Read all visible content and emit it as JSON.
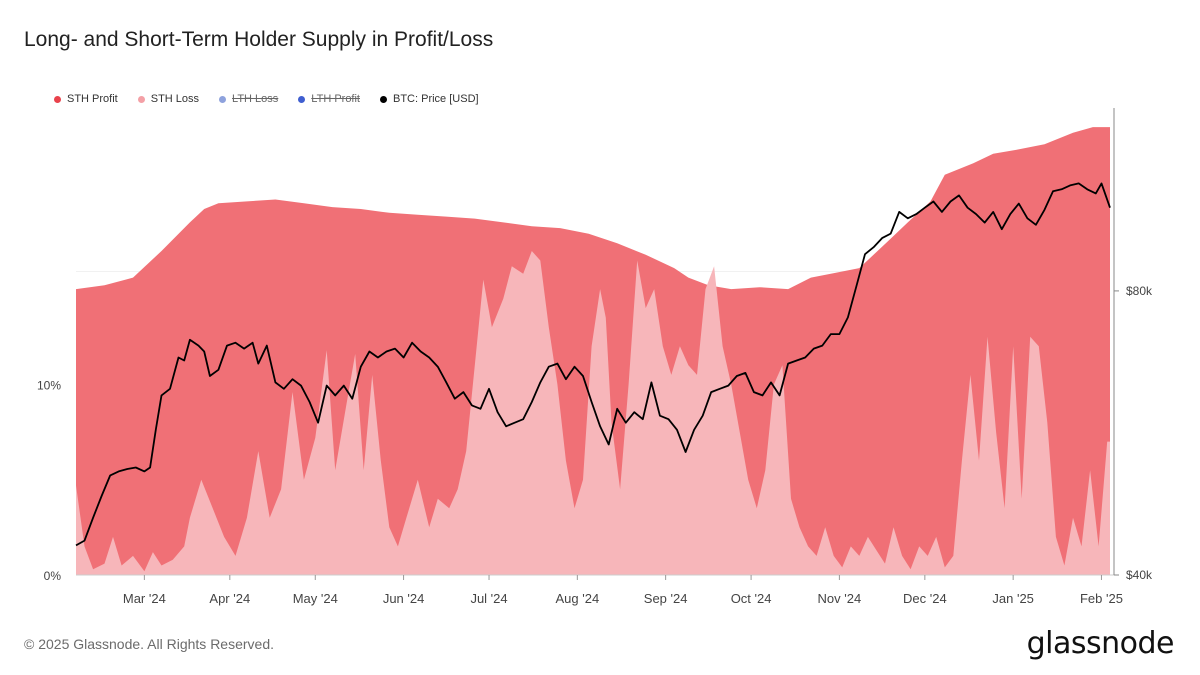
{
  "title": "Long- and Short-Term Holder Supply in Profit/Loss",
  "footer": "© 2025 Glassnode. All Rights Reserved.",
  "logo": "glassnode",
  "colors": {
    "sth_profit": "#f07076",
    "sth_loss": "#f7b6ba",
    "lth_loss": "#8ea2dd",
    "lth_profit": "#3f5ed0",
    "price": "#000000",
    "axis": "#444444"
  },
  "legend": [
    {
      "label": "STH Profit",
      "color": "#e9424c",
      "enabled": true
    },
    {
      "label": "STH Loss",
      "color": "#f4a0a6",
      "enabled": true
    },
    {
      "label": "LTH Loss",
      "color": "#8ea2dd",
      "enabled": false
    },
    {
      "label": "LTH Profit",
      "color": "#3f5ed0",
      "enabled": false
    },
    {
      "label": "BTC: Price [USD]",
      "color": "#000000",
      "enabled": true
    }
  ],
  "chart_data": {
    "type": "area",
    "title": "Long- and Short-Term Holder Supply in Profit/Loss",
    "x_range": [
      "2024-02-06",
      "2025-02-06"
    ],
    "x_ticks": [
      {
        "label": "Mar '24",
        "day": 24
      },
      {
        "label": "Apr '24",
        "day": 54
      },
      {
        "label": "May '24",
        "day": 84
      },
      {
        "label": "Jun '24",
        "day": 115
      },
      {
        "label": "Jul '24",
        "day": 145
      },
      {
        "label": "Aug '24",
        "day": 176
      },
      {
        "label": "Sep '24",
        "day": 207
      },
      {
        "label": "Oct '24",
        "day": 237
      },
      {
        "label": "Nov '24",
        "day": 268
      },
      {
        "label": "Dec '24",
        "day": 298
      },
      {
        "label": "Jan '25",
        "day": 329
      },
      {
        "label": "Feb '25",
        "day": 360
      }
    ],
    "y_left": {
      "range": [
        0,
        24.5
      ],
      "ticks": [
        {
          "label": "0%",
          "value": 0
        },
        {
          "label": "10%",
          "value": 10
        }
      ],
      "unit": "% of supply"
    },
    "y_right": {
      "scale": "log",
      "range_usd": [
        40000,
        125000
      ],
      "ticks": [
        {
          "label": "$40k",
          "value": 40000
        },
        {
          "label": "$80k",
          "value": 80000
        }
      ]
    },
    "series": [
      {
        "name": "STH Profit (top of stacked STH supply)",
        "unit": "% of supply",
        "points": [
          [
            0,
            15.0
          ],
          [
            10,
            15.2
          ],
          [
            20,
            15.6
          ],
          [
            30,
            17.0
          ],
          [
            40,
            18.5
          ],
          [
            45,
            19.2
          ],
          [
            50,
            19.5
          ],
          [
            60,
            19.6
          ],
          [
            70,
            19.7
          ],
          [
            80,
            19.5
          ],
          [
            90,
            19.3
          ],
          [
            100,
            19.2
          ],
          [
            110,
            19.0
          ],
          [
            120,
            18.9
          ],
          [
            130,
            18.8
          ],
          [
            140,
            18.7
          ],
          [
            150,
            18.5
          ],
          [
            160,
            18.3
          ],
          [
            170,
            18.2
          ],
          [
            180,
            17.9
          ],
          [
            190,
            17.4
          ],
          [
            200,
            16.8
          ],
          [
            210,
            16.1
          ],
          [
            215,
            15.6
          ],
          [
            222,
            15.2
          ],
          [
            230,
            15.0
          ],
          [
            240,
            15.1
          ],
          [
            250,
            15.0
          ],
          [
            258,
            15.6
          ],
          [
            265,
            15.8
          ],
          [
            275,
            16.1
          ],
          [
            285,
            17.5
          ],
          [
            292,
            18.5
          ],
          [
            300,
            19.6
          ],
          [
            305,
            21.0
          ],
          [
            315,
            21.6
          ],
          [
            322,
            22.1
          ],
          [
            330,
            22.3
          ],
          [
            340,
            22.6
          ],
          [
            350,
            23.2
          ],
          [
            357,
            23.5
          ],
          [
            363,
            23.5
          ]
        ]
      },
      {
        "name": "STH Loss",
        "unit": "% of supply",
        "points": [
          [
            0,
            4.7
          ],
          [
            3,
            1.5
          ],
          [
            6,
            0.3
          ],
          [
            10,
            0.6
          ],
          [
            13,
            2.0
          ],
          [
            16,
            0.5
          ],
          [
            20,
            1.0
          ],
          [
            24,
            0.2
          ],
          [
            27,
            1.2
          ],
          [
            30,
            0.5
          ],
          [
            34,
            0.8
          ],
          [
            38,
            1.5
          ],
          [
            40,
            3.0
          ],
          [
            44,
            5.0
          ],
          [
            48,
            3.5
          ],
          [
            52,
            2.0
          ],
          [
            56,
            1.0
          ],
          [
            60,
            3.0
          ],
          [
            64,
            6.5
          ],
          [
            68,
            3.0
          ],
          [
            72,
            4.5
          ],
          [
            76,
            9.6
          ],
          [
            80,
            5.0
          ],
          [
            84,
            7.2
          ],
          [
            88,
            11.8
          ],
          [
            91,
            5.5
          ],
          [
            95,
            9.0
          ],
          [
            98,
            11.6
          ],
          [
            101,
            5.5
          ],
          [
            104,
            10.5
          ],
          [
            107,
            6.0
          ],
          [
            110,
            2.5
          ],
          [
            113,
            1.5
          ],
          [
            116,
            3.0
          ],
          [
            120,
            5.0
          ],
          [
            124,
            2.5
          ],
          [
            127,
            4.0
          ],
          [
            131,
            3.5
          ],
          [
            134,
            4.5
          ],
          [
            137,
            6.5
          ],
          [
            140,
            11.0
          ],
          [
            143,
            15.5
          ],
          [
            146,
            13.0
          ],
          [
            150,
            14.5
          ],
          [
            153,
            16.2
          ],
          [
            157,
            15.8
          ],
          [
            160,
            17.0
          ],
          [
            163,
            16.5
          ],
          [
            166,
            13.0
          ],
          [
            169,
            10.0
          ],
          [
            172,
            6.0
          ],
          [
            175,
            3.5
          ],
          [
            178,
            5.0
          ],
          [
            181,
            12.0
          ],
          [
            184,
            15.0
          ],
          [
            186,
            13.5
          ],
          [
            188,
            8.0
          ],
          [
            191,
            4.5
          ],
          [
            194,
            10.0
          ],
          [
            197,
            16.5
          ],
          [
            200,
            14.0
          ],
          [
            203,
            15.0
          ],
          [
            206,
            12.0
          ],
          [
            209,
            10.5
          ],
          [
            212,
            12.0
          ],
          [
            215,
            11.0
          ],
          [
            218,
            10.5
          ],
          [
            221,
            15.0
          ],
          [
            224,
            16.2
          ],
          [
            227,
            12.0
          ],
          [
            230,
            10.0
          ],
          [
            233,
            7.5
          ],
          [
            236,
            5.0
          ],
          [
            239,
            3.5
          ],
          [
            242,
            5.5
          ],
          [
            245,
            10.0
          ],
          [
            248,
            11.0
          ],
          [
            251,
            4.0
          ],
          [
            254,
            2.5
          ],
          [
            257,
            1.5
          ],
          [
            260,
            1.0
          ],
          [
            263,
            2.5
          ],
          [
            266,
            1.0
          ],
          [
            269,
            0.4
          ],
          [
            272,
            1.5
          ],
          [
            275,
            1.0
          ],
          [
            278,
            2.0
          ],
          [
            281,
            1.3
          ],
          [
            284,
            0.6
          ],
          [
            287,
            2.5
          ],
          [
            290,
            1.0
          ],
          [
            293,
            0.3
          ],
          [
            296,
            1.5
          ],
          [
            299,
            1.0
          ],
          [
            302,
            2.0
          ],
          [
            305,
            0.4
          ],
          [
            308,
            1.0
          ],
          [
            311,
            6.0
          ],
          [
            314,
            10.5
          ],
          [
            317,
            6.0
          ],
          [
            320,
            12.5
          ],
          [
            323,
            7.5
          ],
          [
            326,
            3.5
          ],
          [
            329,
            12.0
          ],
          [
            332,
            4.0
          ],
          [
            335,
            12.5
          ],
          [
            338,
            12.0
          ],
          [
            341,
            8.0
          ],
          [
            344,
            2.0
          ],
          [
            347,
            0.5
          ],
          [
            350,
            3.0
          ],
          [
            353,
            1.5
          ],
          [
            356,
            5.5
          ],
          [
            359,
            1.5
          ],
          [
            362,
            7.0
          ],
          [
            363,
            7.0
          ]
        ]
      },
      {
        "name": "BTC: Price [USD]",
        "unit": "USD",
        "points": [
          [
            0,
            43000
          ],
          [
            3,
            43500
          ],
          [
            6,
            46000
          ],
          [
            9,
            48500
          ],
          [
            12,
            51000
          ],
          [
            15,
            51500
          ],
          [
            18,
            51800
          ],
          [
            21,
            52000
          ],
          [
            24,
            51500
          ],
          [
            26,
            52000
          ],
          [
            28,
            57000
          ],
          [
            30,
            62000
          ],
          [
            33,
            63000
          ],
          [
            36,
            68000
          ],
          [
            38,
            67500
          ],
          [
            40,
            71000
          ],
          [
            43,
            70000
          ],
          [
            45,
            69000
          ],
          [
            47,
            65000
          ],
          [
            50,
            66000
          ],
          [
            53,
            70000
          ],
          [
            56,
            70500
          ],
          [
            59,
            69500
          ],
          [
            62,
            70500
          ],
          [
            64,
            67000
          ],
          [
            67,
            70000
          ],
          [
            70,
            64000
          ],
          [
            73,
            63000
          ],
          [
            76,
            64500
          ],
          [
            79,
            63500
          ],
          [
            82,
            61000
          ],
          [
            85,
            58000
          ],
          [
            88,
            63500
          ],
          [
            91,
            62000
          ],
          [
            94,
            63500
          ],
          [
            97,
            61500
          ],
          [
            100,
            66500
          ],
          [
            103,
            69000
          ],
          [
            106,
            68000
          ],
          [
            109,
            69000
          ],
          [
            112,
            69500
          ],
          [
            115,
            68000
          ],
          [
            118,
            70500
          ],
          [
            121,
            69000
          ],
          [
            124,
            68000
          ],
          [
            127,
            66500
          ],
          [
            130,
            64000
          ],
          [
            133,
            61500
          ],
          [
            136,
            62500
          ],
          [
            139,
            60500
          ],
          [
            142,
            60000
          ],
          [
            145,
            63000
          ],
          [
            148,
            59500
          ],
          [
            151,
            57500
          ],
          [
            154,
            58000
          ],
          [
            157,
            58500
          ],
          [
            160,
            61000
          ],
          [
            163,
            64000
          ],
          [
            166,
            66500
          ],
          [
            169,
            67000
          ],
          [
            172,
            64500
          ],
          [
            175,
            66500
          ],
          [
            178,
            65000
          ],
          [
            181,
            61000
          ],
          [
            184,
            57500
          ],
          [
            187,
            55000
          ],
          [
            190,
            60000
          ],
          [
            193,
            58000
          ],
          [
            196,
            59500
          ],
          [
            199,
            58500
          ],
          [
            202,
            64000
          ],
          [
            205,
            59000
          ],
          [
            208,
            58500
          ],
          [
            211,
            57000
          ],
          [
            214,
            54000
          ],
          [
            217,
            57000
          ],
          [
            220,
            59000
          ],
          [
            223,
            62500
          ],
          [
            226,
            63000
          ],
          [
            229,
            63500
          ],
          [
            232,
            65000
          ],
          [
            235,
            65500
          ],
          [
            238,
            62500
          ],
          [
            241,
            62000
          ],
          [
            244,
            64000
          ],
          [
            247,
            62000
          ],
          [
            250,
            67000
          ],
          [
            253,
            67500
          ],
          [
            256,
            68000
          ],
          [
            259,
            69500
          ],
          [
            262,
            70000
          ],
          [
            265,
            72000
          ],
          [
            268,
            72000
          ],
          [
            271,
            75000
          ],
          [
            274,
            81000
          ],
          [
            277,
            87500
          ],
          [
            280,
            89000
          ],
          [
            283,
            91000
          ],
          [
            286,
            92000
          ],
          [
            289,
            97000
          ],
          [
            292,
            95500
          ],
          [
            295,
            96500
          ],
          [
            298,
            98000
          ],
          [
            301,
            99500
          ],
          [
            304,
            97000
          ],
          [
            307,
            99500
          ],
          [
            310,
            101000
          ],
          [
            313,
            98000
          ],
          [
            316,
            96500
          ],
          [
            319,
            94500
          ],
          [
            322,
            97000
          ],
          [
            325,
            93000
          ],
          [
            328,
            96500
          ],
          [
            331,
            99000
          ],
          [
            334,
            95500
          ],
          [
            337,
            94000
          ],
          [
            340,
            97500
          ],
          [
            343,
            102000
          ],
          [
            346,
            102500
          ],
          [
            349,
            103500
          ],
          [
            352,
            104000
          ],
          [
            355,
            102500
          ],
          [
            358,
            101500
          ],
          [
            360,
            104000
          ],
          [
            363,
            98000
          ]
        ]
      }
    ],
    "legend_position": "top-left",
    "grid": false
  }
}
